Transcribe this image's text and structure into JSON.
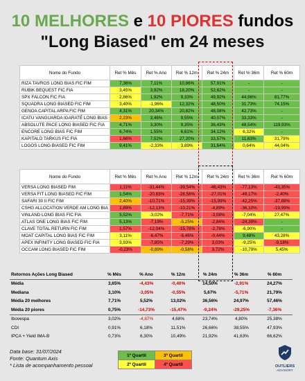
{
  "title": {
    "num_top": "10",
    "melhores": "MELHORES",
    "conj": "e",
    "num_bottom": "10",
    "piores": "PIORES",
    "fundos": "fundos",
    "line2": "\"Long Biased\" em 24 meses"
  },
  "headers": [
    "Nome do Fundo",
    "Ret % Mês",
    "Ret % Ano",
    "Ret % 12m",
    "Ret % 24m",
    "Ret % 36m",
    "Ret % 60m"
  ],
  "best_funds": [
    {
      "name": "RIZA TAVROS LONG BIAS FIC FIM",
      "values": [
        "7,36%",
        "7,11%",
        "10,86%",
        "57,91%",
        "-",
        "-"
      ],
      "quartiles": [
        "q1",
        "q1",
        "q1",
        "q1",
        "q1",
        "q1"
      ]
    },
    {
      "name": "RUBIK BEQUEST FIC FIA",
      "values": [
        "3,45%",
        "3,92%",
        "18,20%",
        "52,62%",
        "-",
        "-"
      ],
      "quartiles": [
        "q2",
        "q1",
        "q1",
        "q1",
        "q1",
        "q1"
      ]
    },
    {
      "name": "SPX FALCON FIC FIA",
      "values": [
        "2,86%",
        "1,92%",
        "9,33%",
        "49,92%",
        "44,96%",
        "81,77%"
      ],
      "quartiles": [
        "q2",
        "q1",
        "q1",
        "q1",
        "q1",
        "q1"
      ]
    },
    {
      "name": "SQUADRA LONG BIASED FIC FIM",
      "values": [
        "3,40%",
        "-1,96%",
        "12,32%",
        "48,50%",
        "31,73%",
        "74,15%"
      ],
      "quartiles": [
        "q2",
        "q2",
        "q1",
        "q1",
        "q1",
        "q1"
      ]
    },
    {
      "name": "GENOA CAPITAL ARPA FIC FIM",
      "values": [
        "4,31%",
        "20,34%",
        "20,82%",
        "48,08%",
        "42,73%",
        "-"
      ],
      "quartiles": [
        "q1",
        "q1",
        "q1",
        "q1",
        "q1",
        "q1"
      ]
    },
    {
      "name": "ICATU VANGUARDA IGARATÉ LONG BIAS",
      "values": [
        "2,23%",
        "3,46%",
        "9,55%",
        "40,07%",
        "33,33%",
        "-"
      ],
      "quartiles": [
        "q3",
        "q1",
        "q1",
        "q1",
        "q1",
        "q1"
      ]
    },
    {
      "name": "ABSOLUTE PACE LONG BIASED FIC FIA",
      "values": [
        "4,71%",
        "3,30%",
        "9,35%",
        "36,43%",
        "48,54%",
        "119,93%"
      ],
      "quartiles": [
        "q1",
        "q1",
        "q1",
        "q1",
        "q1",
        "q1"
      ]
    },
    {
      "name": "ENCORE LONG BIAS FIC FIM",
      "values": [
        "6,74%",
        "1,55%",
        "6,61%",
        "34,12%",
        "6,32%",
        "-"
      ],
      "quartiles": [
        "q1",
        "q1",
        "q1",
        "q1",
        "q2",
        "q1"
      ]
    },
    {
      "name": "KAPITALO TARKUS FIC FIA",
      "values": [
        "1,66%",
        "7,52%",
        "27,20%",
        "33,57%",
        "11,63%",
        "31,79%"
      ],
      "quartiles": [
        "q4",
        "q1",
        "q1",
        "q1",
        "q1",
        "q2"
      ]
    },
    {
      "name": "LOGOS LONG BIASED FIC FIM",
      "values": [
        "9,41%",
        "-2,33%",
        "3,89%",
        "31,64%",
        "0,64%",
        "44,04%"
      ],
      "quartiles": [
        "q1",
        "q2",
        "q2",
        "q1",
        "q2",
        "q2"
      ]
    }
  ],
  "worst_funds": [
    {
      "name": "VERSA LONG BIASED FIM",
      "values": [
        "1,11%",
        "-31,44%",
        "-39,54%",
        "-46,43%",
        "-77,13%",
        "-43,35%"
      ],
      "quartiles": [
        "q4",
        "q4",
        "q4",
        "q4",
        "q4",
        "q4"
      ]
    },
    {
      "name": "VERSA FIT LONG BIASED FIC FIM",
      "values": [
        "1,54%",
        "-20,83%",
        "-28,58%",
        "-27,01%",
        "-49,17%",
        "-2,40%"
      ],
      "quartiles": [
        "q1",
        "q4",
        "q4",
        "q4",
        "q4",
        "q4"
      ]
    },
    {
      "name": "SAFARI 30 II FIC FIM",
      "values": [
        "2,40%",
        "-10,71%",
        "-15,39%",
        "-15,99%",
        "-42,25%",
        "-37,88%"
      ],
      "quartiles": [
        "q3",
        "q4",
        "q4",
        "q4",
        "q4",
        "q4"
      ]
    },
    {
      "name": "CSHG ALLOCATION VERDE AM LONG BIA",
      "values": [
        "1,89%",
        "-12,13%",
        "-10,21%",
        "-4,89%",
        "-36,10%",
        "-19,99%"
      ],
      "quartiles": [
        "q4",
        "q4",
        "q4",
        "q4",
        "q4",
        "q4"
      ]
    },
    {
      "name": "VINLAND LONG BIAS FIC FIA",
      "values": [
        "5,52%",
        "-3,02%",
        "-7,71%",
        "-3,08%",
        "-7,04%",
        "27,47%"
      ],
      "quartiles": [
        "q1",
        "q2",
        "q4",
        "q4",
        "q2",
        "q2"
      ]
    },
    {
      "name": "ATLAS ONE LONG BIAS FIC FIM",
      "values": [
        "5,13%",
        "-7,19%",
        "-5,25%",
        "-2,84%",
        "-24,39%",
        "-"
      ],
      "quartiles": [
        "q1",
        "q4",
        "q3",
        "q4",
        "q4",
        "q1"
      ]
    },
    {
      "name": "CLAVE TOTAL RETURN FIC FIM",
      "values": [
        "1,57%",
        "-12,04%",
        "-15,78%",
        "-2,78%",
        "-6,90%",
        "-"
      ],
      "quartiles": [
        "q4",
        "q4",
        "q4",
        "q4",
        "q2",
        "q1"
      ]
    },
    {
      "name": "MOAT CAPITAL LONG BIAS FIC FIM",
      "values": [
        "3,11%",
        "-6,47%",
        "-6,46%",
        "-0,44%",
        "9,48%",
        "43,28%"
      ],
      "quartiles": [
        "q2",
        "q4",
        "q4",
        "q4",
        "q1",
        "q2"
      ]
    },
    {
      "name": "APEX INFINITY LONG BIASED FIC FIA",
      "values": [
        "3,93%",
        "-7,85%",
        "-7,29%",
        "3,03%",
        "-9,25%",
        "-9,18%"
      ],
      "quartiles": [
        "q2",
        "q4",
        "q4",
        "q4",
        "q2",
        "q4"
      ]
    },
    {
      "name": "OCCAM LONG BIASED FIC FIM",
      "values": [
        "-0,23%",
        "-0,89%",
        "-0,58%",
        "3,72%",
        "-10,79%",
        "5,45%"
      ],
      "quartiles": [
        "q4",
        "q3",
        "q3",
        "q4",
        "q2",
        "q2"
      ]
    }
  ],
  "summary": {
    "headers": [
      "Retornos Ações Long Biased",
      "% Mês",
      "% Ano",
      "% 12m",
      "% 24m",
      "% 36m",
      "% 60m"
    ],
    "rows": [
      {
        "label": "Média",
        "values": [
          "3,65%",
          "-4,43%",
          "-0,40%",
          "14,50%",
          "-2,91%",
          "24,27%"
        ],
        "bold": true
      },
      {
        "label": "Mediana",
        "values": [
          "3,10%",
          "-3,05%",
          "-0,55%",
          "5,67%",
          "-5,71%",
          "21,79%"
        ],
        "bold": true
      },
      {
        "label": "Média 20 melhores",
        "values": [
          "7,71%",
          "5,52%",
          "13,02%",
          "36,56%",
          "24,97%",
          "57,46%"
        ],
        "bold": true
      },
      {
        "label": "Média 20 piores",
        "values": [
          "0,75%",
          "-14,73%",
          "-15,47%",
          "-9,24%",
          "-29,25%",
          "-7,36%"
        ],
        "bold": true
      },
      {
        "label": "Ibovespa",
        "values": [
          "3,02%",
          "-4,87%",
          "4,68%",
          "23,74%",
          "4,80%",
          "25,38%"
        ],
        "bold": false
      },
      {
        "label": "CDI",
        "values": [
          "0,91%",
          "6,18%",
          "11,51%",
          "26,66%",
          "38,55%",
          "47,93%"
        ],
        "bold": false
      },
      {
        "label": "IPCA + Yield IMA-B",
        "values": [
          "0,73%",
          "6,30%",
          "10,49%",
          "21,92%",
          "41,63%",
          "66,62%"
        ],
        "bold": false
      }
    ]
  },
  "footer": {
    "date": "Data base: 31/07/2024",
    "source": "Fonte: Quantum Axis",
    "note": "* Lista de acompanhamento pessoal"
  },
  "legend": {
    "q1": "1º Quartil",
    "q2": "2º Quartil",
    "q3": "3º Quartil",
    "q4": "4º Quartil"
  },
  "logo": {
    "name": "OUTLIERS",
    "sub": "ADVISORY"
  },
  "colors": {
    "q1": "#6cc04a",
    "q2": "#ffff3a",
    "q3": "#ffc000",
    "q4": "#ff5050",
    "title_green": "#6aa84f",
    "title_red": "#e03030",
    "negative": "#d00000"
  }
}
